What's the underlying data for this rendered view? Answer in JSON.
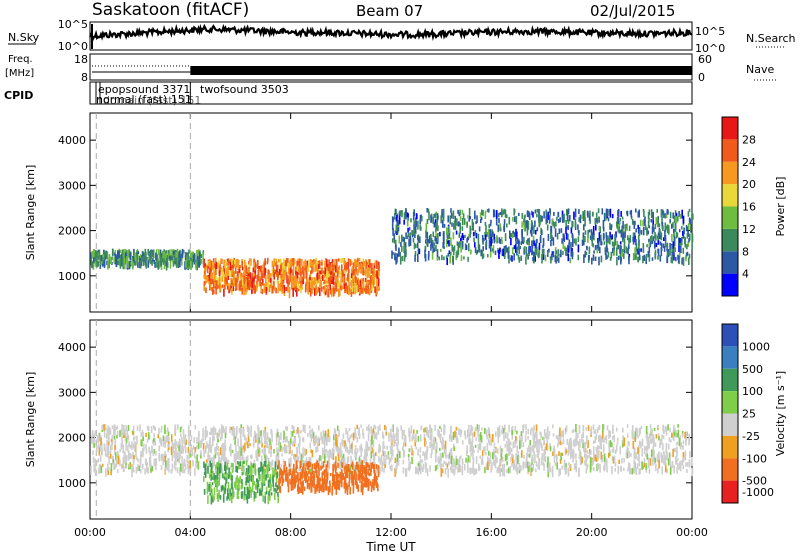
{
  "header": {
    "radar": "Saskatoon (fitACF)",
    "beam": "Beam 07",
    "date": "02/Jul/2015"
  },
  "panels": {
    "nsky": {
      "left_label": "N.Sky",
      "left_ticks": [
        "10^5",
        "10^0"
      ],
      "right_ticks": [
        "10^5",
        "10^0"
      ],
      "right_label": "N.Search"
    },
    "freq": {
      "left_label_top": "Freq.",
      "left_label_bottom": "[MHz]",
      "left_ticks": [
        "18",
        "8"
      ],
      "right_ticks": [
        "60",
        "0"
      ],
      "right_label": "Nave"
    },
    "cpid": {
      "label": "CPID",
      "programs": [
        "epopsound 3371",
        "twofsound 3503",
        "normal (fast) 151",
        "ndomain (fast) 151"
      ]
    }
  },
  "chart_data": [
    {
      "type": "heatmap",
      "title": "",
      "xlabel": "",
      "ylabel": "Slant Range [km]",
      "x_ticks": [
        "00:00",
        "04:00",
        "08:00",
        "12:00",
        "16:00",
        "20:00",
        "00:00"
      ],
      "y_ticks": [
        1000,
        2000,
        3000,
        4000
      ],
      "ylim": [
        200,
        4600
      ],
      "colorbar": {
        "label": "Power [dB]",
        "ticks": [
          4,
          8,
          12,
          16,
          20,
          24,
          28
        ],
        "colors": [
          "#0000ff",
          "#2c59a3",
          "#3c8a5c",
          "#6fbd3f",
          "#e8d83a",
          "#f59a1f",
          "#f05a1a",
          "#e81818"
        ]
      },
      "features": [
        {
          "name": "near-range band",
          "t_start_h": 0,
          "t_end_h": 4.5,
          "range_km": [
            1300,
            1600
          ],
          "power_db": 10
        },
        {
          "name": "strong patch",
          "t_start_h": 4.5,
          "t_end_h": 11.5,
          "range_km": [
            700,
            1400
          ],
          "power_db": 24
        },
        {
          "name": "far band",
          "t_start_h": 12,
          "t_end_h": 24,
          "range_km": [
            1400,
            2500
          ],
          "power_db": 8
        }
      ]
    },
    {
      "type": "heatmap",
      "title": "",
      "xlabel": "Time UT",
      "ylabel": "Slant Range [km]",
      "x_ticks": [
        "00:00",
        "04:00",
        "08:00",
        "12:00",
        "16:00",
        "20:00",
        "00:00"
      ],
      "y_ticks": [
        1000,
        2000,
        3000,
        4000
      ],
      "ylim": [
        200,
        4600
      ],
      "colorbar": {
        "label": "Velocity [m s⁻¹]",
        "ticks": [
          1000,
          500,
          100,
          25,
          -25,
          -100,
          -500,
          -1000
        ],
        "colors": [
          "#2d4fb8",
          "#3a7fc0",
          "#3f9a5a",
          "#7fce4a",
          "#cfcfcf",
          "#f0a020",
          "#f07020",
          "#e82020"
        ]
      },
      "features": [
        {
          "name": "ground scatter band",
          "t_start_h": 0,
          "t_end_h": 24,
          "range_km": [
            1300,
            2300
          ],
          "velocity": 0
        },
        {
          "name": "positive velocity patch",
          "t_start_h": 4.5,
          "t_end_h": 7.5,
          "range_km": [
            700,
            1500
          ],
          "velocity": 100
        },
        {
          "name": "negative velocity patch",
          "t_start_h": 7.5,
          "t_end_h": 11.5,
          "range_km": [
            900,
            1500
          ],
          "velocity": -300
        }
      ]
    }
  ],
  "x_axis_title": "Time UT"
}
